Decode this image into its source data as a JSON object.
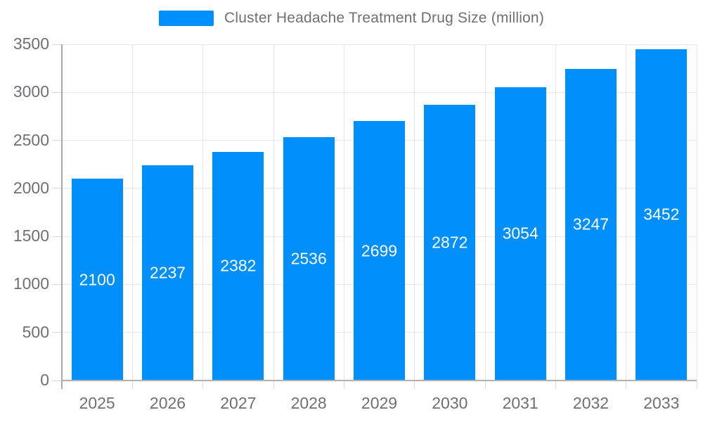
{
  "legend": {
    "position": "top",
    "swatch_color": "#008FFB"
  },
  "chart_data": {
    "type": "bar",
    "title": "Cluster Headache Treatment Drug Size (million)",
    "categories": [
      "2025",
      "2026",
      "2027",
      "2028",
      "2029",
      "2030",
      "2031",
      "2032",
      "2033"
    ],
    "series": [
      {
        "name": "Cluster Headache Treatment Drug Size (million)",
        "values": [
          2100,
          2237,
          2382,
          2536,
          2699,
          2872,
          3054,
          3247,
          3452
        ]
      }
    ],
    "xlabel": "",
    "ylabel": "",
    "ylim": [
      0,
      3500
    ],
    "yticks": [
      0,
      500,
      1000,
      1500,
      2000,
      2500,
      3000,
      3500
    ],
    "grid": "on",
    "legend_position": "top",
    "value_labels": "inside-center",
    "colors": [
      "#008FFB"
    ],
    "label_color": "#6e7073",
    "value_label_color": "#ffffff"
  }
}
